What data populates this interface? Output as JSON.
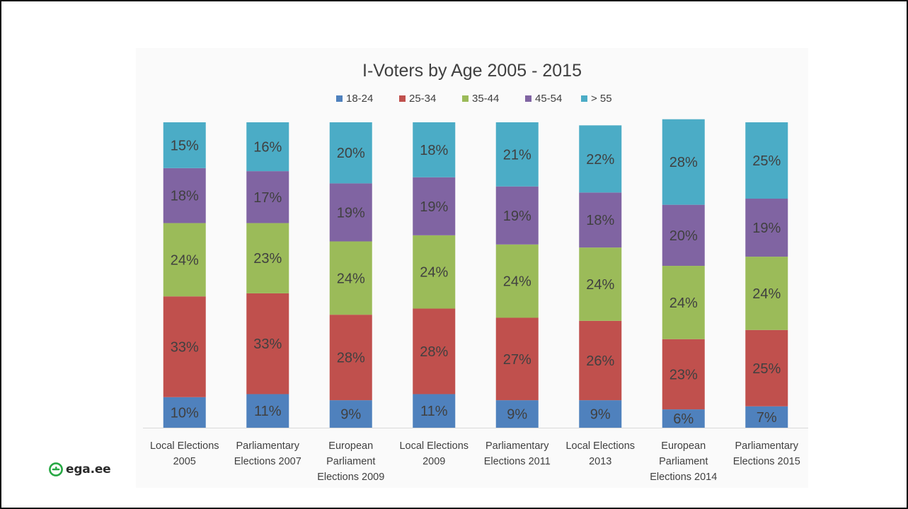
{
  "chart_data": {
    "type": "bar",
    "stacked": true,
    "percent_stacked": true,
    "title": "I-Voters by Age 2005 - 2015",
    "legend_position": "top",
    "grid": false,
    "ylim": [
      0,
      100
    ],
    "categories": [
      [
        "Local Elections",
        "2005"
      ],
      [
        "Parliamentary",
        "Elections 2007"
      ],
      [
        "European",
        "Parliament",
        "Elections 2009"
      ],
      [
        "Local Elections",
        "2009"
      ],
      [
        "Parliamentary",
        "Elections 2011"
      ],
      [
        "Local Elections",
        "2013"
      ],
      [
        "European",
        "Parliament",
        "Elections 2014"
      ],
      [
        "Parliamentary",
        "Elections 2015"
      ]
    ],
    "series": [
      {
        "name": "18-24",
        "color": "#4f81bd",
        "values": [
          10,
          11,
          9,
          11,
          9,
          9,
          6,
          7
        ],
        "labels": [
          "10%",
          "11%",
          "9%",
          "11%",
          "9%",
          "9%",
          "6%",
          "7%"
        ]
      },
      {
        "name": "25-34",
        "color": "#c0504d",
        "values": [
          33,
          33,
          28,
          28,
          27,
          26,
          23,
          25
        ],
        "labels": [
          "33%",
          "33%",
          "28%",
          "28%",
          "27%",
          "26%",
          "23%",
          "25%"
        ]
      },
      {
        "name": "35-44",
        "color": "#9bbb59",
        "values": [
          24,
          23,
          24,
          24,
          24,
          24,
          24,
          24
        ],
        "labels": [
          "24%",
          "23%",
          "24%",
          "24%",
          "24%",
          "24%",
          "24%",
          "24%"
        ]
      },
      {
        "name": "45-54",
        "color": "#8064a2",
        "values": [
          18,
          17,
          19,
          19,
          19,
          18,
          20,
          19
        ],
        "labels": [
          "18%",
          "17%",
          "19%",
          "19%",
          "19%",
          "18%",
          "20%",
          "19%"
        ]
      },
      {
        "name": "> 55",
        "color": "#4bacc6",
        "values": [
          15,
          16,
          20,
          18,
          21,
          22,
          28,
          25
        ],
        "labels": [
          "15%",
          "16%",
          "20%",
          "18%",
          "21%",
          "22%",
          "28%",
          "25%"
        ]
      }
    ]
  },
  "logo": {
    "text": "ega.ee",
    "icon": "ega-logo-icon",
    "color": "#27a844"
  }
}
